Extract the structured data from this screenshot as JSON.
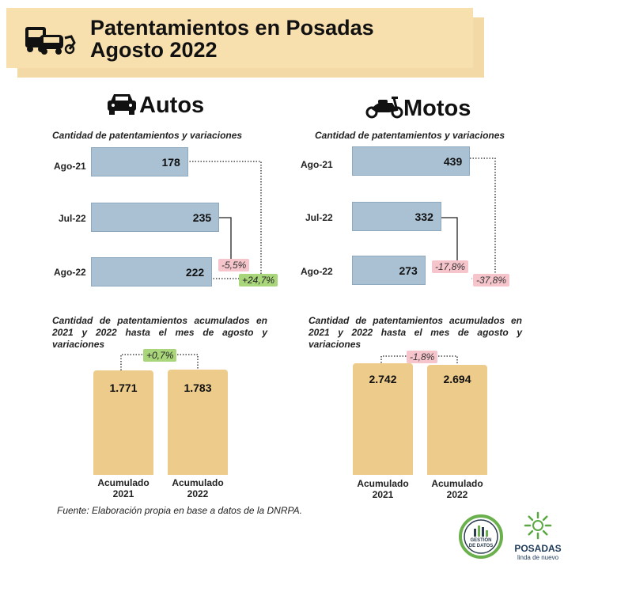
{
  "header": {
    "title_line1": "Patentamientos en Posadas",
    "title_line2": "Agosto 2022"
  },
  "icons": {
    "banner": "vehicles-icon",
    "autos": "car-icon",
    "motos": "scooter-icon"
  },
  "colors": {
    "banner": "#f7dfae",
    "hbar": "#a9c1d3",
    "vbar": "#edcb8a",
    "negative_badge": "#f6c5cc",
    "positive_badge": "#a9d67a"
  },
  "autos": {
    "title": "Autos",
    "monthly_subtitle": "Cantidad de patentamientos y variaciones",
    "accum_subtitle": "Cantidad de patentamientos acumulados en 2021 y 2022 hasta el mes de agosto y variaciones"
  },
  "motos": {
    "title": "Motos",
    "monthly_subtitle": "Cantidad de patentamientos y variaciones",
    "accum_subtitle": "Cantidad de patentamientos acumulados en 2021 y 2022 hasta el mes de agosto y variaciones"
  },
  "chart_data": [
    {
      "type": "bar",
      "orientation": "horizontal",
      "categories": [
        "Ago-21",
        "Jul-22",
        "Ago-22"
      ],
      "values": [
        178,
        235,
        222
      ],
      "value_labels": [
        "178",
        "235",
        "222"
      ],
      "title": "Cantidad de patentamientos y variaciones",
      "annotations": [
        "-5,5%",
        "+24,7%"
      ]
    },
    {
      "type": "bar",
      "orientation": "horizontal",
      "categories": [
        "Ago-21",
        "Jul-22",
        "Ago-22"
      ],
      "values": [
        439,
        332,
        273
      ],
      "value_labels": [
        "439",
        "332",
        "273"
      ],
      "title": "Cantidad de patentamientos y variaciones",
      "annotations": [
        "-17,8%",
        "-37,8%"
      ]
    },
    {
      "type": "bar",
      "orientation": "vertical",
      "categories": [
        "Acumulado 2021",
        "Acumulado 2022"
      ],
      "category_lines": [
        [
          "Acumulado",
          "2021"
        ],
        [
          "Acumulado",
          "2022"
        ]
      ],
      "values": [
        1771,
        1783
      ],
      "value_labels": [
        "1.771",
        "1.783"
      ],
      "title": "Cantidad de patentamientos acumulados en 2021 y 2022 hasta el mes de agosto y variaciones",
      "annotations": [
        "+0,7%"
      ]
    },
    {
      "type": "bar",
      "orientation": "vertical",
      "categories": [
        "Acumulado 2021",
        "Acumulado 2022"
      ],
      "category_lines": [
        [
          "Acumulado",
          "2021"
        ],
        [
          "Acumulado",
          "2022"
        ]
      ],
      "values": [
        2742,
        2694
      ],
      "value_labels": [
        "2.742",
        "2.694"
      ],
      "title": "Cantidad de patentamientos acumulados en 2021 y 2022 hasta el mes de agosto y variaciones",
      "annotations": [
        "-1,8%"
      ]
    }
  ],
  "footer": {
    "source": "Fuente: Elaboración propia en base a datos de la DNRPA.",
    "logo1_line1": "GESTIÓN",
    "logo1_line2": "DE DATOS",
    "logo2_name": "POSADAS",
    "logo2_tagline": "linda de nuevo"
  }
}
